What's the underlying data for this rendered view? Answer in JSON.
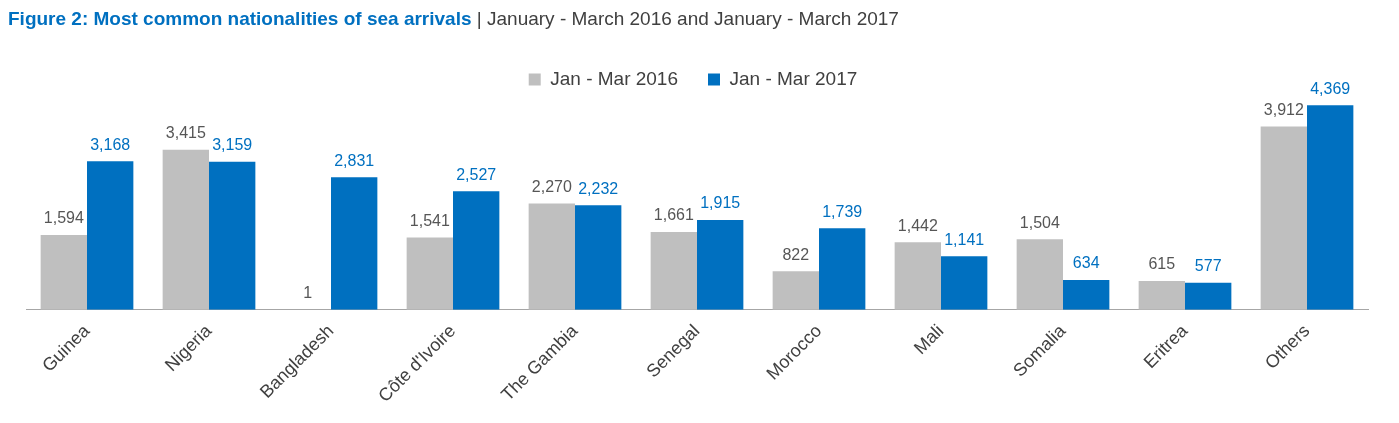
{
  "chart_data": {
    "type": "bar",
    "title": "Figure 2: Most common nationalities of sea arrivals",
    "subtitle": "| January - March 2016 and January - March 2017",
    "categories": [
      "Guinea",
      "Nigeria",
      "Bangladesh",
      "Côte d'Ivoire",
      "The Gambia",
      "Senegal",
      "Morocco",
      "Mali",
      "Somalia",
      "Eritrea",
      "Others"
    ],
    "series": [
      {
        "name": "Jan - Mar 2016",
        "color": "#bfbfbf",
        "values": [
          1594,
          3415,
          1,
          1541,
          2270,
          1661,
          822,
          1442,
          1504,
          615,
          3912
        ],
        "value_labels": [
          "1,594",
          "3,415",
          "1",
          "1,541",
          "2,270",
          "1,661",
          "822",
          "1,442",
          "1,504",
          "615",
          "3,912"
        ]
      },
      {
        "name": "Jan - Mar 2017",
        "color": "#0070c0",
        "values": [
          3168,
          3159,
          2831,
          2527,
          2232,
          1915,
          1739,
          1141,
          634,
          577,
          4369
        ],
        "value_labels": [
          "3,168",
          "3,159",
          "2,831",
          "2,527",
          "2,232",
          "1,915",
          "1,739",
          "1,141",
          "634",
          "577",
          "4,369"
        ]
      }
    ],
    "legend": "top",
    "grid": false
  }
}
